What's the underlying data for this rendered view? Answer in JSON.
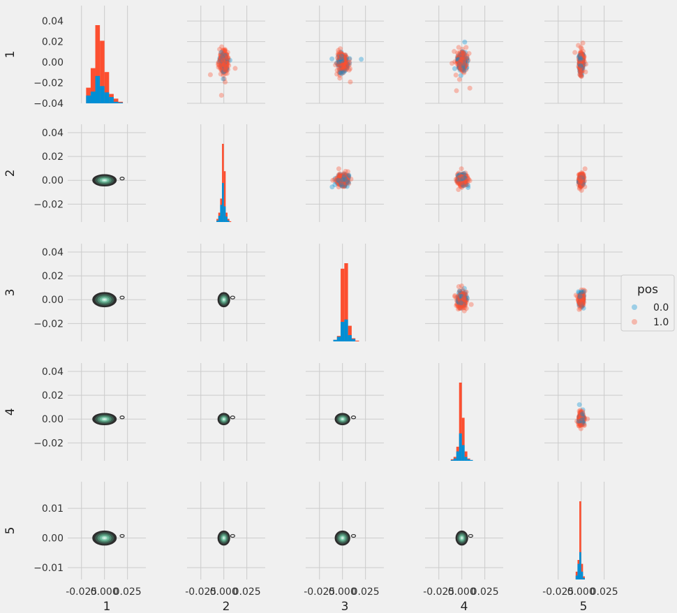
{
  "chart_data": {
    "type": "scatter",
    "description_of_layout": "5x5 pairplot matrix",
    "variables": [
      "1",
      "2",
      "3",
      "4",
      "5"
    ],
    "hue": "pos",
    "legend": {
      "title": "pos",
      "placement": "right",
      "entries": [
        {
          "label": "0.0",
          "color": "#008fd5"
        },
        {
          "label": "1.0",
          "color": "#fc4f30"
        }
      ]
    },
    "x_ticks": {
      "values": [
        -0.025,
        0,
        0.025
      ],
      "labels": [
        "-0.025",
        "0.000",
        "0.025"
      ],
      "range": [
        -0.04,
        0.045
      ]
    },
    "y_axes": [
      {
        "var": "1",
        "ticks": [
          0.04,
          0.02,
          0.0,
          -0.02,
          -0.04
        ],
        "labels": [
          "0.04",
          "0.02",
          "0.00",
          "−0.02",
          "−0.04"
        ],
        "range": [
          -0.04,
          0.055
        ]
      },
      {
        "var": "2",
        "ticks": [
          0.04,
          0.02,
          0.0,
          -0.02
        ],
        "labels": [
          "0.04",
          "0.02",
          "0.00",
          "−0.02"
        ],
        "range": [
          -0.035,
          0.047
        ]
      },
      {
        "var": "3",
        "ticks": [
          0.04,
          0.02,
          0.0,
          -0.02
        ],
        "labels": [
          "0.04",
          "0.02",
          "0.00",
          "−0.02"
        ],
        "range": [
          -0.035,
          0.047
        ]
      },
      {
        "var": "4",
        "ticks": [
          0.04,
          0.02,
          0.0,
          -0.02
        ],
        "labels": [
          "0.04",
          "0.02",
          "0.00",
          "−0.02"
        ],
        "range": [
          -0.035,
          0.047
        ]
      },
      {
        "var": "5",
        "ticks": [
          0.01,
          0.0,
          -0.01
        ],
        "labels": [
          "0.01",
          "0.00",
          "−0.01"
        ],
        "range": [
          -0.014,
          0.019
        ]
      }
    ],
    "histograms": {
      "1": {
        "bins": [
          -0.02,
          -0.015,
          -0.01,
          -0.005,
          0.0,
          0.005,
          0.01,
          0.015,
          0.02
        ],
        "pos0": [
          0.1,
          0.15,
          0.35,
          0.22,
          0.14,
          0.08,
          0.02,
          0.01
        ],
        "pos1": [
          0.2,
          0.45,
          1.0,
          0.8,
          0.4,
          0.12,
          0.06,
          0.02
        ]
      },
      "2": {
        "bins": [
          -0.008,
          -0.006,
          -0.004,
          -0.002,
          0.0,
          0.002,
          0.004,
          0.006,
          0.008
        ],
        "pos0": [
          0.02,
          0.08,
          0.22,
          0.5,
          0.2,
          0.07,
          0.02,
          0.0
        ],
        "pos1": [
          0.04,
          0.12,
          0.3,
          1.0,
          0.65,
          0.12,
          0.04,
          0.01
        ]
      },
      "3": {
        "bins": [
          -0.01,
          -0.006,
          -0.002,
          0.002,
          0.006,
          0.01,
          0.014,
          0.018
        ],
        "pos0": [
          0.02,
          0.06,
          0.25,
          0.28,
          0.08,
          0.03,
          0.0
        ],
        "pos1": [
          0.02,
          0.07,
          0.93,
          1.0,
          0.2,
          0.04,
          0.01
        ]
      },
      "4": {
        "bins": [
          -0.012,
          -0.009,
          -0.006,
          -0.003,
          0.0,
          0.003,
          0.006,
          0.009,
          0.012
        ],
        "pos0": [
          0.01,
          0.03,
          0.12,
          0.35,
          0.2,
          0.05,
          0.02,
          0.01
        ],
        "pos1": [
          0.02,
          0.05,
          0.18,
          1.0,
          0.55,
          0.12,
          0.03,
          0.01
        ]
      },
      "5": {
        "bins": [
          -0.006,
          -0.004,
          -0.002,
          0.0,
          0.002,
          0.004,
          0.006
        ],
        "pos0": [
          0.05,
          0.2,
          0.35,
          0.1,
          0.02,
          0.0
        ],
        "pos1": [
          0.1,
          0.25,
          1.0,
          0.2,
          0.04,
          0.0
        ]
      }
    },
    "scatter_summary": {
      "center": [
        0.0,
        0.0
      ],
      "spread": {
        "1": 0.008,
        "2": 0.004,
        "3": 0.005,
        "4": 0.004,
        "5": 0.002
      }
    }
  }
}
